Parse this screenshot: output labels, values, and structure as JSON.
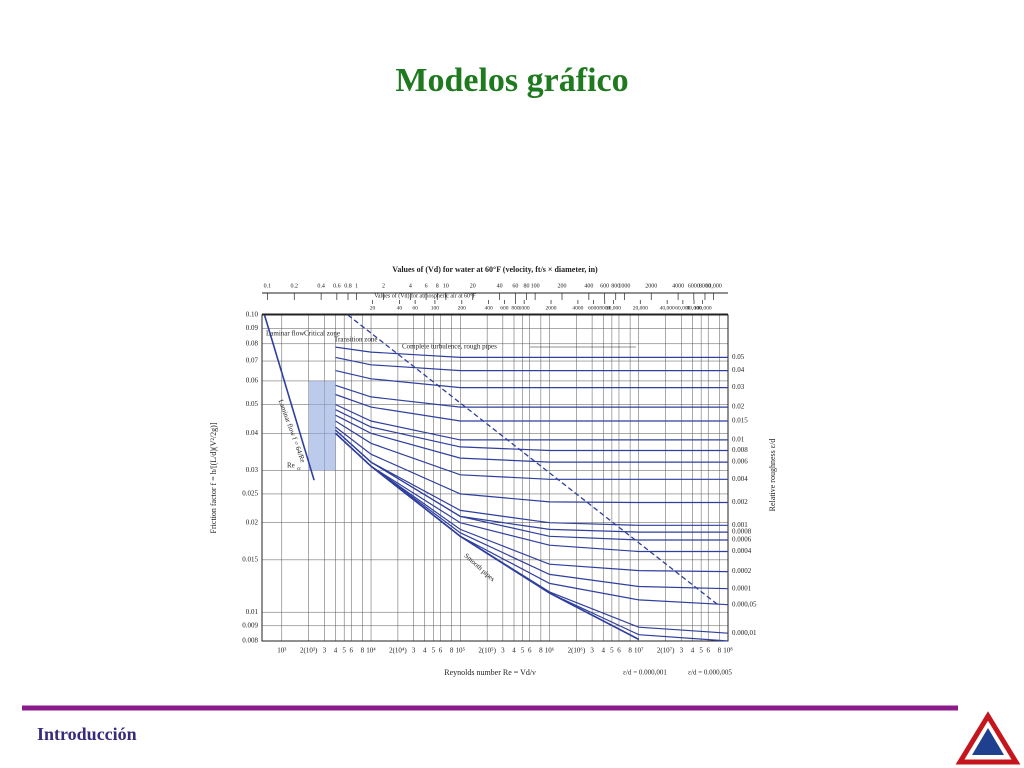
{
  "slide": {
    "title": "Modelos gráfico",
    "footer": "Introducción"
  },
  "chart_data": {
    "type": "moody",
    "title": "Values of (Vd) for water at 60°F (velocity, ft/s × diameter, in)",
    "subtitle": "Values of (Vd) for atmospheric air at 60°F",
    "x_label": "Reynolds number Re = Vd/ν",
    "y_label": "Friction factor f = h/[(L/d)(V²/2g)]",
    "y2_label": "Relative roughness ε/d",
    "log_x": true,
    "log_y": true,
    "grid": true,
    "color": "#2f3f9e",
    "xlim": [
      600,
      100000000
    ],
    "ylim": [
      0.008,
      0.1
    ],
    "yticks": [
      0.008,
      0.009,
      0.01,
      0.015,
      0.02,
      0.025,
      0.03,
      0.04,
      0.05,
      0.06,
      0.07,
      0.08,
      0.09,
      {
        "value": 0.1,
        "label": "0.10"
      }
    ],
    "xticks": [
      {
        "value": 1000,
        "label": "10³"
      },
      {
        "value": 2000,
        "label": "2(10³)"
      },
      {
        "value": 3000,
        "label": "3"
      },
      {
        "value": 4000,
        "label": "4"
      },
      {
        "value": 5000,
        "label": "5"
      },
      {
        "value": 6000,
        "label": "6"
      },
      {
        "value": 8000,
        "label": "8"
      },
      {
        "value": 10000,
        "label": "10⁴"
      },
      {
        "value": 20000,
        "label": "2(10⁴)"
      },
      {
        "value": 30000,
        "label": "3"
      },
      {
        "value": 40000,
        "label": "4"
      },
      {
        "value": 50000,
        "label": "5"
      },
      {
        "value": 60000,
        "label": "6"
      },
      {
        "value": 80000,
        "label": "8"
      },
      {
        "value": 100000,
        "label": "10⁵"
      },
      {
        "value": 200000,
        "label": "2(10⁵)"
      },
      {
        "value": 300000,
        "label": "3"
      },
      {
        "value": 400000,
        "label": "4"
      },
      {
        "value": 500000,
        "label": "5"
      },
      {
        "value": 600000,
        "label": "6"
      },
      {
        "value": 800000,
        "label": "8"
      },
      {
        "value": 1000000,
        "label": "10⁶"
      },
      {
        "value": 2000000,
        "label": "2(10⁶)"
      },
      {
        "value": 3000000,
        "label": "3"
      },
      {
        "value": 4000000,
        "label": "4"
      },
      {
        "value": 5000000,
        "label": "5"
      },
      {
        "value": 6000000,
        "label": "6"
      },
      {
        "value": 8000000,
        "label": "8"
      },
      {
        "value": 10000000,
        "label": "10⁷"
      },
      {
        "value": 20000000,
        "label": "2(10⁷)"
      },
      {
        "value": 30000000,
        "label": "3"
      },
      {
        "value": 40000000,
        "label": "4"
      },
      {
        "value": 50000000,
        "label": "5"
      },
      {
        "value": 60000000,
        "label": "6"
      },
      {
        "value": 80000000,
        "label": "8"
      },
      {
        "value": 100000000,
        "label": "10⁸"
      }
    ],
    "x2lim": [
      0.087,
      14493
    ],
    "x2ticks": [
      0.1,
      0.2,
      0.4,
      0.6,
      0.8,
      1,
      2,
      4,
      6,
      8,
      10,
      20,
      40,
      60,
      80,
      100,
      200,
      400,
      600,
      800,
      1000,
      2000,
      4000,
      6000,
      8000,
      {
        "value": 10000,
        "label": "10,000"
      }
    ],
    "x3lim": [
      1.154,
      192308
    ],
    "x3ticks": [
      20,
      40,
      60,
      100,
      200,
      400,
      600,
      800,
      1000,
      2000,
      4000,
      6000,
      8000,
      {
        "value": 10000,
        "label": "10,000"
      },
      {
        "value": 20000,
        "label": "20,000"
      },
      {
        "value": 40000,
        "label": "40,000"
      },
      {
        "value": 60000,
        "label": "60,000"
      },
      {
        "value": 80000,
        "label": "80,000"
      },
      {
        "value": 100000,
        "label": "100,000"
      }
    ],
    "x": [
      4000,
      10000,
      100000,
      1000000,
      10000000,
      100000000
    ],
    "series": [
      {
        "name": "0.05",
        "values": [
          0.078,
          0.075,
          0.072,
          0.072,
          0.072,
          0.072
        ]
      },
      {
        "name": "0.04",
        "values": [
          0.072,
          0.068,
          0.065,
          0.065,
          0.065,
          0.065
        ]
      },
      {
        "name": "0.03",
        "values": [
          0.065,
          0.061,
          0.057,
          0.057,
          0.057,
          0.057
        ]
      },
      {
        "name": "0.02",
        "values": [
          0.058,
          0.053,
          0.049,
          0.049,
          0.049,
          0.049
        ]
      },
      {
        "name": "0.015",
        "values": [
          0.054,
          0.049,
          0.044,
          0.044,
          0.044,
          0.044
        ]
      },
      {
        "name": "0.01",
        "values": [
          0.05,
          0.044,
          0.038,
          0.038,
          0.038,
          0.038
        ]
      },
      {
        "name": "0.008",
        "values": [
          0.048,
          0.042,
          0.036,
          0.035,
          0.035,
          0.035
        ]
      },
      {
        "name": "0.006",
        "values": [
          0.046,
          0.04,
          0.033,
          0.032,
          0.032,
          0.032
        ]
      },
      {
        "name": "0.004",
        "values": [
          0.044,
          0.037,
          0.029,
          0.028,
          0.028,
          0.028
        ]
      },
      {
        "name": "0.002",
        "values": [
          0.042,
          0.034,
          0.025,
          0.0235,
          0.0234,
          0.0234
        ]
      },
      {
        "name": "0.001",
        "values": [
          0.041,
          0.032,
          0.022,
          0.02,
          0.0196,
          0.0196
        ]
      },
      {
        "name": "0.0008",
        "values": [
          0.041,
          0.032,
          0.021,
          0.019,
          0.0186,
          0.0186
        ]
      },
      {
        "name": "0.0006",
        "values": [
          0.041,
          0.032,
          0.021,
          0.018,
          0.0175,
          0.0175
        ]
      },
      {
        "name": "0.0004",
        "values": [
          0.04,
          0.031,
          0.02,
          0.0168,
          0.016,
          0.016
        ]
      },
      {
        "name": "0.0002",
        "values": [
          0.04,
          0.031,
          0.019,
          0.0145,
          0.0138,
          0.0137
        ]
      },
      {
        "name": "0.0001",
        "values": [
          0.04,
          0.031,
          0.0185,
          0.0134,
          0.0122,
          0.012
        ]
      },
      {
        "name": "0.000,05",
        "values": [
          0.04,
          0.031,
          0.018,
          0.0125,
          0.011,
          0.0106
        ]
      },
      {
        "name": "0.000,01",
        "values": [
          0.04,
          0.031,
          0.018,
          0.0117,
          0.0089,
          0.0085
        ]
      }
    ],
    "bottom_series": [
      {
        "name": "ε/d = 0.000,001",
        "values": [
          0.04,
          0.031,
          0.018,
          0.0116,
          0.0081,
          null
        ]
      },
      {
        "name": "ε/d = 0.000,005",
        "values": [
          0.04,
          0.031,
          0.018,
          0.0116,
          0.0084,
          0.008
        ]
      }
    ],
    "smooth_pipes": {
      "name": "Smooth pipes",
      "values": [
        0.04,
        0.031,
        0.018,
        0.0116,
        0.0081,
        null
      ]
    },
    "laminar": {
      "name": "Laminar flow f = 64/Re",
      "x": [
        640,
        2300
      ],
      "values": [
        0.1,
        0.0278
      ]
    },
    "boundary": {
      "x": [
        5500,
        80000000
      ],
      "values": [
        0.1,
        0.0105
      ]
    },
    "critical_zone": [
      2000,
      4000
    ],
    "annotations": {
      "laminar": "Laminar flow",
      "critical": "Critical zone",
      "transition": "Transition zone",
      "turbulence": "Complete turbulence, rough pipes",
      "re": "Re",
      "cr": "cr"
    }
  }
}
